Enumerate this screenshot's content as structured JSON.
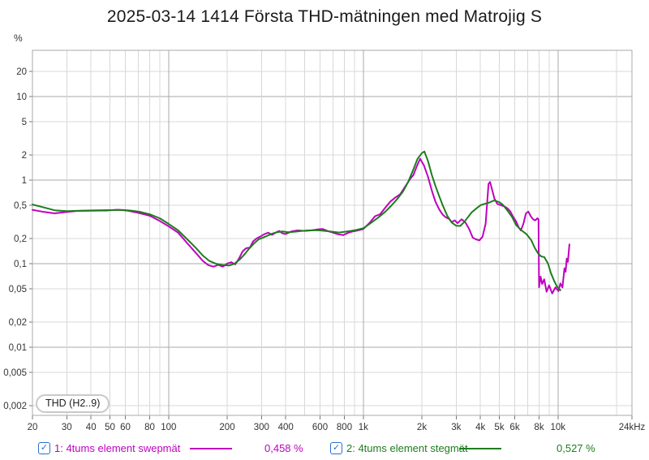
{
  "title": "2025-03-14 1414 Första THD-mätningen med Matrojig S",
  "chart_data": {
    "type": "line",
    "title": "2025-03-14 1414 Första THD-mätningen med Matrojig S",
    "annotation": "THD (H2..9)",
    "grid": "on",
    "legend_position": "bottom",
    "x_axis": {
      "scale": "log",
      "min_hz": 20,
      "max_hz": 24000,
      "ticks": [
        [
          20,
          "20"
        ],
        [
          30,
          "30"
        ],
        [
          40,
          "40"
        ],
        [
          50,
          "50"
        ],
        [
          60,
          "60"
        ],
        [
          80,
          "80"
        ],
        [
          100,
          "100"
        ],
        [
          200,
          "200"
        ],
        [
          300,
          "300"
        ],
        [
          400,
          "400"
        ],
        [
          600,
          "600"
        ],
        [
          800,
          "800"
        ],
        [
          1000,
          "1k"
        ],
        [
          2000,
          "2k"
        ],
        [
          3000,
          "3k"
        ],
        [
          4000,
          "4k"
        ],
        [
          5000,
          "5k"
        ],
        [
          6000,
          "6k"
        ],
        [
          8000,
          "8k"
        ],
        [
          10000,
          "10k"
        ],
        [
          24000,
          "24kHz"
        ]
      ],
      "minor_gridlines_hz": [
        70,
        90,
        500,
        700,
        900,
        7000,
        9000,
        20000
      ],
      "major_gridlines_hz": [
        100,
        1000,
        10000
      ]
    },
    "y_axis": {
      "unit": "%",
      "scale": "log",
      "ticks": [
        [
          20,
          "20"
        ],
        [
          10,
          "10"
        ],
        [
          5,
          "5"
        ],
        [
          2,
          "2"
        ],
        [
          1,
          "1"
        ],
        [
          0.5,
          "0,5"
        ],
        [
          0.2,
          "0,2"
        ],
        [
          0.1,
          "0,1"
        ],
        [
          0.05,
          "0,05"
        ],
        [
          0.02,
          "0,02"
        ],
        [
          0.01,
          "0,01"
        ],
        [
          0.005,
          "0,005"
        ],
        [
          0.002,
          "0,002"
        ]
      ],
      "major_gridlines": [
        10,
        1,
        0.1,
        0.01
      ]
    },
    "series": [
      {
        "id": "series-1",
        "name": "1: 4tums element swepmät",
        "thd_total": "0,458 %",
        "color": "#bf00bf",
        "checked": true,
        "points": [
          [
            20,
            0.44
          ],
          [
            23,
            0.415
          ],
          [
            26,
            0.4
          ],
          [
            30,
            0.415
          ],
          [
            34,
            0.428
          ],
          [
            40,
            0.43
          ],
          [
            48,
            0.432
          ],
          [
            55,
            0.442
          ],
          [
            62,
            0.43
          ],
          [
            70,
            0.405
          ],
          [
            80,
            0.375
          ],
          [
            90,
            0.325
          ],
          [
            100,
            0.28
          ],
          [
            112,
            0.235
          ],
          [
            125,
            0.175
          ],
          [
            138,
            0.135
          ],
          [
            150,
            0.108
          ],
          [
            160,
            0.096
          ],
          [
            170,
            0.092
          ],
          [
            180,
            0.097
          ],
          [
            190,
            0.092
          ],
          [
            200,
            0.1
          ],
          [
            210,
            0.104
          ],
          [
            220,
            0.098
          ],
          [
            230,
            0.115
          ],
          [
            240,
            0.14
          ],
          [
            250,
            0.153
          ],
          [
            262,
            0.156
          ],
          [
            272,
            0.185
          ],
          [
            283,
            0.2
          ],
          [
            295,
            0.21
          ],
          [
            310,
            0.225
          ],
          [
            325,
            0.235
          ],
          [
            340,
            0.221
          ],
          [
            355,
            0.235
          ],
          [
            370,
            0.246
          ],
          [
            385,
            0.23
          ],
          [
            400,
            0.226
          ],
          [
            430,
            0.244
          ],
          [
            460,
            0.25
          ],
          [
            500,
            0.247
          ],
          [
            540,
            0.25
          ],
          [
            580,
            0.257
          ],
          [
            620,
            0.26
          ],
          [
            660,
            0.245
          ],
          [
            700,
            0.235
          ],
          [
            745,
            0.224
          ],
          [
            790,
            0.22
          ],
          [
            840,
            0.235
          ],
          [
            890,
            0.244
          ],
          [
            940,
            0.25
          ],
          [
            1000,
            0.26
          ],
          [
            1080,
            0.31
          ],
          [
            1150,
            0.37
          ],
          [
            1220,
            0.39
          ],
          [
            1300,
            0.47
          ],
          [
            1380,
            0.555
          ],
          [
            1450,
            0.61
          ],
          [
            1550,
            0.68
          ],
          [
            1650,
            0.85
          ],
          [
            1750,
            1.05
          ],
          [
            1810,
            1.15
          ],
          [
            1880,
            1.45
          ],
          [
            1960,
            1.8
          ],
          [
            2050,
            1.5
          ],
          [
            2150,
            1.1
          ],
          [
            2250,
            0.75
          ],
          [
            2350,
            0.55
          ],
          [
            2450,
            0.45
          ],
          [
            2550,
            0.39
          ],
          [
            2650,
            0.36
          ],
          [
            2750,
            0.345
          ],
          [
            2850,
            0.315
          ],
          [
            2950,
            0.33
          ],
          [
            3050,
            0.305
          ],
          [
            3200,
            0.34
          ],
          [
            3350,
            0.31
          ],
          [
            3500,
            0.26
          ],
          [
            3650,
            0.205
          ],
          [
            3800,
            0.195
          ],
          [
            3950,
            0.19
          ],
          [
            4100,
            0.21
          ],
          [
            4250,
            0.3
          ],
          [
            4400,
            0.9
          ],
          [
            4480,
            0.95
          ],
          [
            4580,
            0.78
          ],
          [
            4720,
            0.6
          ],
          [
            4880,
            0.52
          ],
          [
            5100,
            0.5
          ],
          [
            5300,
            0.485
          ],
          [
            5500,
            0.46
          ],
          [
            5700,
            0.42
          ],
          [
            5900,
            0.36
          ],
          [
            6100,
            0.32
          ],
          [
            6300,
            0.27
          ],
          [
            6450,
            0.25
          ],
          [
            6650,
            0.3
          ],
          [
            6850,
            0.4
          ],
          [
            7050,
            0.42
          ],
          [
            7250,
            0.37
          ],
          [
            7450,
            0.34
          ],
          [
            7650,
            0.33
          ],
          [
            7850,
            0.35
          ],
          [
            7950,
            0.34
          ],
          [
            8000,
            0.052
          ],
          [
            8150,
            0.07
          ],
          [
            8300,
            0.057
          ],
          [
            8500,
            0.065
          ],
          [
            8750,
            0.046
          ],
          [
            9000,
            0.055
          ],
          [
            9350,
            0.044
          ],
          [
            9700,
            0.052
          ],
          [
            10050,
            0.047
          ],
          [
            10300,
            0.058
          ],
          [
            10550,
            0.052
          ],
          [
            10800,
            0.088
          ],
          [
            10950,
            0.08
          ],
          [
            11100,
            0.115
          ],
          [
            11250,
            0.105
          ],
          [
            11450,
            0.17
          ]
        ]
      },
      {
        "id": "series-2",
        "name": "2: 4tums element stegmät",
        "thd_total": "0,527 %",
        "color": "#1e7d1e",
        "checked": true,
        "points": [
          [
            20,
            0.51
          ],
          [
            23,
            0.47
          ],
          [
            26,
            0.435
          ],
          [
            30,
            0.425
          ],
          [
            35,
            0.43
          ],
          [
            42,
            0.435
          ],
          [
            50,
            0.437
          ],
          [
            58,
            0.44
          ],
          [
            65,
            0.43
          ],
          [
            72,
            0.415
          ],
          [
            80,
            0.39
          ],
          [
            90,
            0.35
          ],
          [
            100,
            0.3
          ],
          [
            112,
            0.25
          ],
          [
            125,
            0.195
          ],
          [
            138,
            0.155
          ],
          [
            150,
            0.125
          ],
          [
            162,
            0.108
          ],
          [
            175,
            0.1
          ],
          [
            190,
            0.096
          ],
          [
            205,
            0.095
          ],
          [
            218,
            0.1
          ],
          [
            232,
            0.112
          ],
          [
            246,
            0.13
          ],
          [
            260,
            0.152
          ],
          [
            275,
            0.175
          ],
          [
            290,
            0.195
          ],
          [
            305,
            0.205
          ],
          [
            320,
            0.215
          ],
          [
            340,
            0.228
          ],
          [
            360,
            0.238
          ],
          [
            385,
            0.243
          ],
          [
            410,
            0.238
          ],
          [
            440,
            0.24
          ],
          [
            480,
            0.246
          ],
          [
            520,
            0.25
          ],
          [
            560,
            0.252
          ],
          [
            600,
            0.25
          ],
          [
            650,
            0.245
          ],
          [
            700,
            0.24
          ],
          [
            750,
            0.236
          ],
          [
            800,
            0.24
          ],
          [
            860,
            0.246
          ],
          [
            920,
            0.253
          ],
          [
            1000,
            0.265
          ],
          [
            1100,
            0.31
          ],
          [
            1200,
            0.36
          ],
          [
            1300,
            0.42
          ],
          [
            1400,
            0.5
          ],
          [
            1500,
            0.6
          ],
          [
            1600,
            0.73
          ],
          [
            1700,
            0.95
          ],
          [
            1800,
            1.3
          ],
          [
            1900,
            1.8
          ],
          [
            2000,
            2.1
          ],
          [
            2060,
            2.2
          ],
          [
            2150,
            1.7
          ],
          [
            2250,
            1.15
          ],
          [
            2350,
            0.85
          ],
          [
            2450,
            0.65
          ],
          [
            2560,
            0.5
          ],
          [
            2700,
            0.375
          ],
          [
            2850,
            0.31
          ],
          [
            3000,
            0.285
          ],
          [
            3150,
            0.283
          ],
          [
            3300,
            0.315
          ],
          [
            3450,
            0.36
          ],
          [
            3600,
            0.41
          ],
          [
            3800,
            0.455
          ],
          [
            4000,
            0.5
          ],
          [
            4200,
            0.52
          ],
          [
            4400,
            0.535
          ],
          [
            4700,
            0.57
          ],
          [
            5000,
            0.545
          ],
          [
            5200,
            0.51
          ],
          [
            5450,
            0.445
          ],
          [
            5800,
            0.365
          ],
          [
            6100,
            0.29
          ],
          [
            6500,
            0.25
          ],
          [
            6900,
            0.225
          ],
          [
            7300,
            0.19
          ],
          [
            7600,
            0.155
          ],
          [
            7900,
            0.133
          ],
          [
            8200,
            0.122
          ],
          [
            8500,
            0.12
          ],
          [
            8900,
            0.1
          ],
          [
            9200,
            0.077
          ],
          [
            9600,
            0.061
          ],
          [
            9900,
            0.053
          ],
          [
            10300,
            0.048
          ]
        ]
      }
    ]
  },
  "legend": {
    "checkmark": "✓",
    "items": [
      {
        "label": "1: 4tums element swepmät",
        "value": "0,458 %"
      },
      {
        "label": "2: 4tums element stegmät",
        "value": "0,527 %"
      }
    ]
  }
}
